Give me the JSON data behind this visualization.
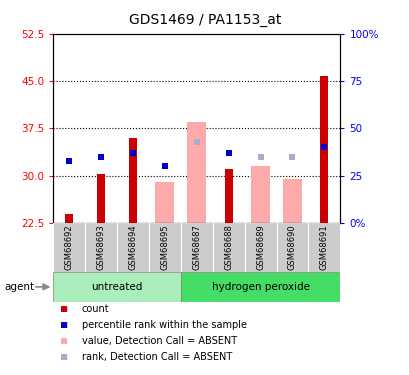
{
  "title": "GDS1469 / PA1153_at",
  "samples": [
    "GSM68692",
    "GSM68693",
    "GSM68694",
    "GSM68695",
    "GSM68687",
    "GSM68688",
    "GSM68689",
    "GSM68690",
    "GSM68691"
  ],
  "count_values": [
    24.0,
    30.3,
    36.0,
    null,
    null,
    31.0,
    null,
    null,
    45.8
  ],
  "rank_pct": [
    33.0,
    35.0,
    37.0,
    30.0,
    null,
    37.0,
    null,
    null,
    40.0
  ],
  "absent_value_values": [
    null,
    null,
    null,
    29.0,
    38.5,
    null,
    31.5,
    29.5,
    null
  ],
  "absent_rank_pct": [
    null,
    null,
    null,
    null,
    43.0,
    null,
    35.0,
    35.0,
    null
  ],
  "ylim_left": [
    22.5,
    52.5
  ],
  "ylim_right": [
    0,
    100
  ],
  "yticks_left": [
    22.5,
    30.0,
    37.5,
    45.0,
    52.5
  ],
  "yticks_right": [
    0,
    25,
    50,
    75,
    100
  ],
  "ytick_labels_right": [
    "0%",
    "25",
    "50",
    "75",
    "100%"
  ],
  "dotted_lines": [
    30.0,
    37.5,
    45.0
  ],
  "bar_color_count": "#cc0000",
  "bar_color_rank": "#0000cc",
  "bar_color_absent_value": "#ffaaaa",
  "bar_color_absent_rank": "#aaaacc",
  "group_colors": {
    "untreated": "#aaeebb",
    "hydrogen peroxide": "#44dd66"
  },
  "plot_bg_color": "#ffffff",
  "sample_bg_color": "#cccccc",
  "legend_items": [
    "count",
    "percentile rank within the sample",
    "value, Detection Call = ABSENT",
    "rank, Detection Call = ABSENT"
  ],
  "legend_colors": [
    "#cc0000",
    "#0000cc",
    "#ffaaaa",
    "#aaaacc"
  ],
  "ybase": 22.5,
  "untreated_indices": [
    0,
    1,
    2,
    3
  ],
  "hydrogen_indices": [
    4,
    5,
    6,
    7,
    8
  ]
}
